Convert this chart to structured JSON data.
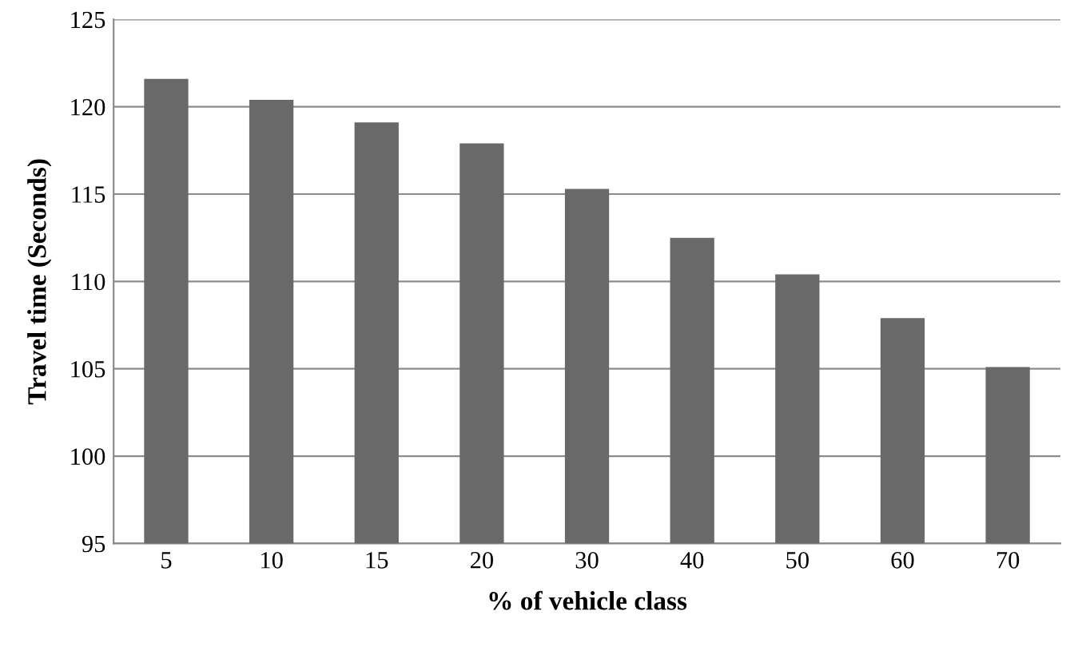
{
  "chart_data": {
    "type": "bar",
    "xlabel": "% of vehicle class",
    "ylabel": "Travel time (Seconds)",
    "categories": [
      "5",
      "10",
      "15",
      "20",
      "30",
      "40",
      "50",
      "60",
      "70"
    ],
    "values": [
      121.6,
      120.4,
      119.1,
      117.9,
      115.3,
      112.5,
      110.4,
      107.9,
      105.1
    ],
    "color": "#696969",
    "ylim": [
      95,
      125
    ],
    "yticks": [
      95,
      100,
      105,
      110,
      115,
      120,
      125
    ],
    "grid": "y"
  }
}
